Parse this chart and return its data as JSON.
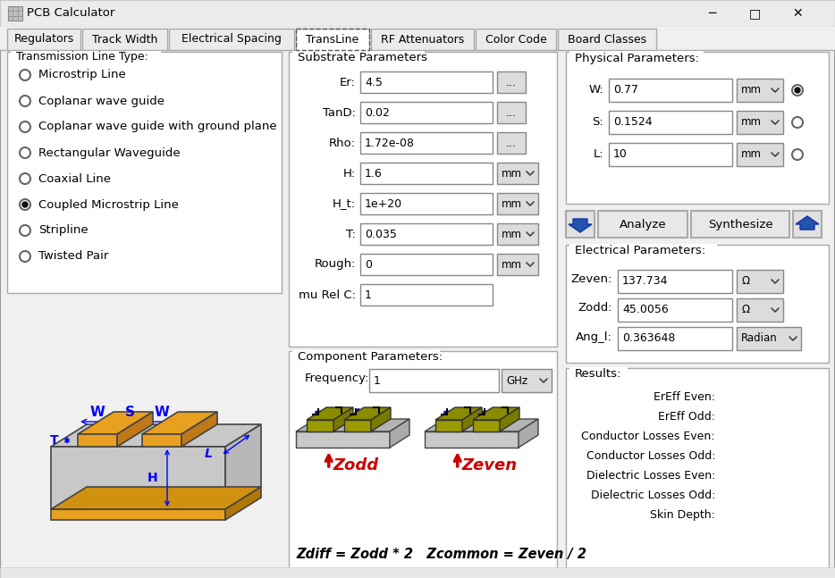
{
  "title": "PCB Calculator",
  "tabs": [
    "Regulators",
    "Track Width",
    "Electrical Spacing",
    "TransLine",
    "RF Attenuators",
    "Color Code",
    "Board Classes"
  ],
  "active_tab": "TransLine",
  "bg_color": "#f0f0f0",
  "panel_bg": "#f5f5f5",
  "white": "#ffffff",
  "border_color": "#aaaaaa",
  "text_color": "#000000",
  "title_bar_bg": "#e0e0e0",
  "transmission_types": [
    "Microstrip Line",
    "Coplanar wave guide",
    "Coplanar wave guide with ground plane",
    "Rectangular Waveguide",
    "Coaxial Line",
    "Coupled Microstrip Line",
    "Stripline",
    "Twisted Pair"
  ],
  "selected_type_index": 5,
  "substrate_params": {
    "Er": "4.5",
    "TanD": "0.02",
    "Rho": "1.72e-08",
    "H": "1.6",
    "H_t": "1e+20",
    "T": "0.035",
    "Rough": "0",
    "mu Rel C": "1"
  },
  "substrate_has_dots": [
    "Er",
    "TanD",
    "Rho"
  ],
  "substrate_has_unit": [
    "H",
    "H_t",
    "T",
    "Rough"
  ],
  "substrate_units": {
    "H": "mm",
    "H_t": "mm",
    "T": "mm",
    "Rough": "mm"
  },
  "physical_params": {
    "W": "0.77",
    "S": "0.1524",
    "L": "10"
  },
  "physical_units": {
    "W": "mm",
    "S": "mm",
    "L": "mm"
  },
  "physical_radio": [
    true,
    false,
    false
  ],
  "electrical_params": {
    "Zeven": "137.734",
    "Zodd": "45.0056",
    "Ang_l": "0.363648"
  },
  "electrical_units": {
    "Zeven": "Ω",
    "Zodd": "Ω",
    "Ang_l": "Radian"
  },
  "results_labels": [
    "ErEff Even:",
    "ErEff Odd:",
    "Conductor Losses Even:",
    "Conductor Losses Odd:",
    "Dielectric Losses Even:",
    "Dielectric Losses Odd:",
    "Skin Depth:"
  ],
  "frequency": "1",
  "frequency_unit": "GHz",
  "formula": "Zdiff = Zodd * 2   Zcommon = Zeven / 2",
  "orange": "#e8a020",
  "grey_substrate": "#c8c8c8",
  "olive": "#808000",
  "dark_olive": "#6b6b00",
  "blue": "#0000ee",
  "red": "#cc0000"
}
